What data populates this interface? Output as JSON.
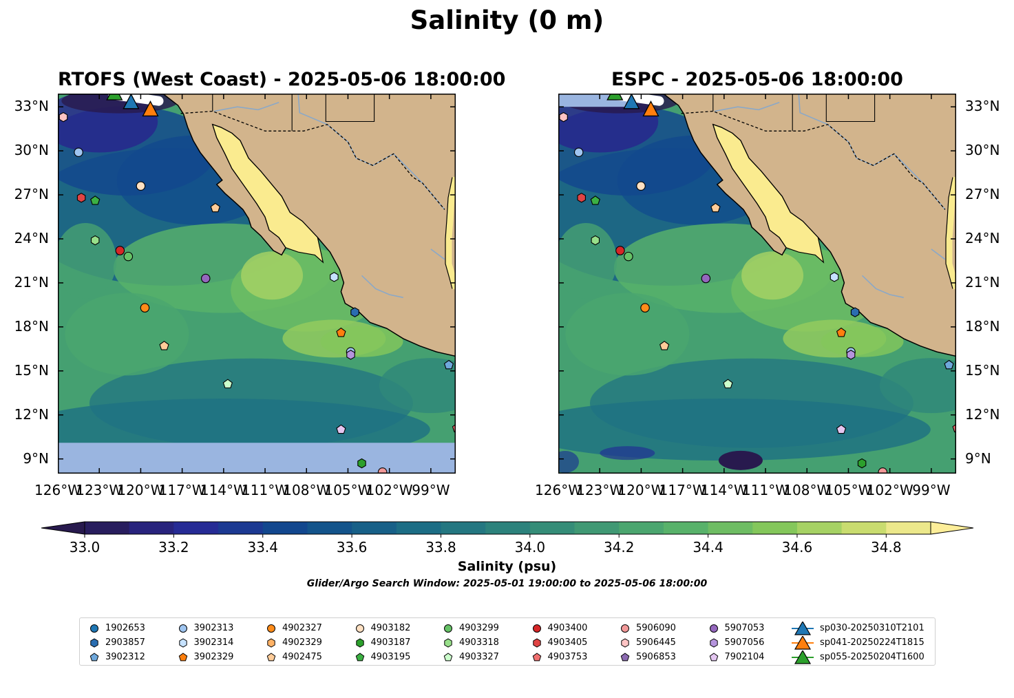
{
  "title": "Salinity (0 m)",
  "panels": [
    {
      "title": "RTOFS (West Coast) - 2025-05-06 18:00:00",
      "model": "RTOFS"
    },
    {
      "title": "ESPC - 2025-05-06 18:00:00",
      "model": "ESPC"
    }
  ],
  "lon_ticks": [
    "126°W",
    "123°W",
    "120°W",
    "117°W",
    "114°W",
    "111°W",
    "108°W",
    "105°W",
    "102°W",
    "99°W"
  ],
  "lat_ticks": [
    "33°N",
    "30°N",
    "27°N",
    "24°N",
    "21°N",
    "18°N",
    "15°N",
    "12°N",
    "9°N"
  ],
  "map_extent": {
    "lon": [
      -126,
      -97.2
    ],
    "lat": [
      8.0,
      33.9
    ]
  },
  "colorbar": {
    "label": "Salinity (psu)",
    "ticks": [
      "33.0",
      "33.2",
      "33.4",
      "33.6",
      "33.8",
      "34.0",
      "34.2",
      "34.4",
      "34.6",
      "34.8"
    ],
    "range": [
      33.0,
      34.9
    ],
    "step": 0.1,
    "extend": "both",
    "colormap": "haline"
  },
  "caption": "Glider/Argo Search Window: 2025-05-01 19:00:00 to 2025-05-06 18:00:00",
  "colors": {
    "land": "#d2b48c",
    "nodata": "#9ab5e0",
    "gulf_water": "#faeb8f",
    "rivers": "#8aa8c8"
  },
  "floats": [
    {
      "id": "1902653",
      "marker": "circle",
      "color": "#1f77b4",
      "lon": null,
      "lat": null
    },
    {
      "id": "2903857",
      "marker": "hexagon",
      "color": "#2a6db0",
      "lon": -104.5,
      "lat": 19.0
    },
    {
      "id": "3902312",
      "marker": "pentagon",
      "color": "#6fa8dc",
      "lon": -97.7,
      "lat": 15.4
    },
    {
      "id": "3902313",
      "marker": "circle",
      "color": "#9fc5f0",
      "lon": -124.5,
      "lat": 29.9
    },
    {
      "id": "3902313",
      "marker": "circle",
      "color": "#9fc5f0",
      "lon": -104.8,
      "lat": 16.3
    },
    {
      "id": "3902314",
      "marker": "hexagon",
      "color": "#c6e2ff",
      "lon": -106.0,
      "lat": 21.4
    },
    {
      "id": "3902329",
      "marker": "pentagon",
      "color": "#ff7f0e",
      "lon": -105.5,
      "lat": 17.6
    },
    {
      "id": "4902327",
      "marker": "circle",
      "color": "#ff8c1a",
      "lon": -119.7,
      "lat": 19.3
    },
    {
      "id": "4902329",
      "marker": "hexagon",
      "color": "#ffb266",
      "lon": null,
      "lat": null
    },
    {
      "id": "4902475",
      "marker": "pentagon",
      "color": "#ffcc99",
      "lon": -118.3,
      "lat": 16.7
    },
    {
      "id": "4902475",
      "marker": "pentagon",
      "color": "#ffcc99",
      "lon": -114.6,
      "lat": 26.1
    },
    {
      "id": "4903182",
      "marker": "circle",
      "color": "#ffe0c2",
      "lon": -120.0,
      "lat": 27.6
    },
    {
      "id": "4903187",
      "marker": "hexagon",
      "color": "#2ca02c",
      "lon": -104.0,
      "lat": 8.7
    },
    {
      "id": "4903195",
      "marker": "pentagon",
      "color": "#3cb043",
      "lon": -123.3,
      "lat": 26.6
    },
    {
      "id": "4903299",
      "marker": "circle",
      "color": "#66c266",
      "lon": -120.9,
      "lat": 22.8
    },
    {
      "id": "4903318",
      "marker": "hexagon",
      "color": "#98df8a",
      "lon": -123.3,
      "lat": 23.9
    },
    {
      "id": "4903327",
      "marker": "pentagon",
      "color": "#ccffcc",
      "lon": -113.7,
      "lat": 14.1
    },
    {
      "id": "4903400",
      "marker": "circle",
      "color": "#d62728",
      "lon": -121.5,
      "lat": 23.2
    },
    {
      "id": "4903405",
      "marker": "hexagon",
      "color": "#e04444",
      "lon": -124.3,
      "lat": 26.8
    },
    {
      "id": "4903753",
      "marker": "pentagon",
      "color": "#f07070",
      "lon": -97.1,
      "lat": 11.1
    },
    {
      "id": "5906090",
      "marker": "circle",
      "color": "#f29999",
      "lon": -102.5,
      "lat": 8.1
    },
    {
      "id": "5906445",
      "marker": "hexagon",
      "color": "#ffc4c4",
      "lon": -125.6,
      "lat": 32.3
    },
    {
      "id": "5906853",
      "marker": "pentagon",
      "color": "#8c6bb1",
      "lon": null,
      "lat": null
    },
    {
      "id": "5907053",
      "marker": "circle",
      "color": "#9467bd",
      "lon": -115.3,
      "lat": 21.3
    },
    {
      "id": "5907056",
      "marker": "hexagon",
      "color": "#b594dd",
      "lon": -104.8,
      "lat": 16.1
    },
    {
      "id": "7902104",
      "marker": "pentagon",
      "color": "#e3c6f0",
      "lon": -105.5,
      "lat": 11.0
    }
  ],
  "gliders": [
    {
      "id": "sp030-20250310T2101",
      "color": "#1f77b4",
      "lon": -120.7,
      "lat": 33.3
    },
    {
      "id": "sp041-20250224T1815",
      "color": "#ff7f0e",
      "lon": -119.3,
      "lat": 32.8
    },
    {
      "id": "sp055-20250204T1600",
      "color": "#2ca02c",
      "lon": -121.9,
      "lat": 33.9
    }
  ]
}
